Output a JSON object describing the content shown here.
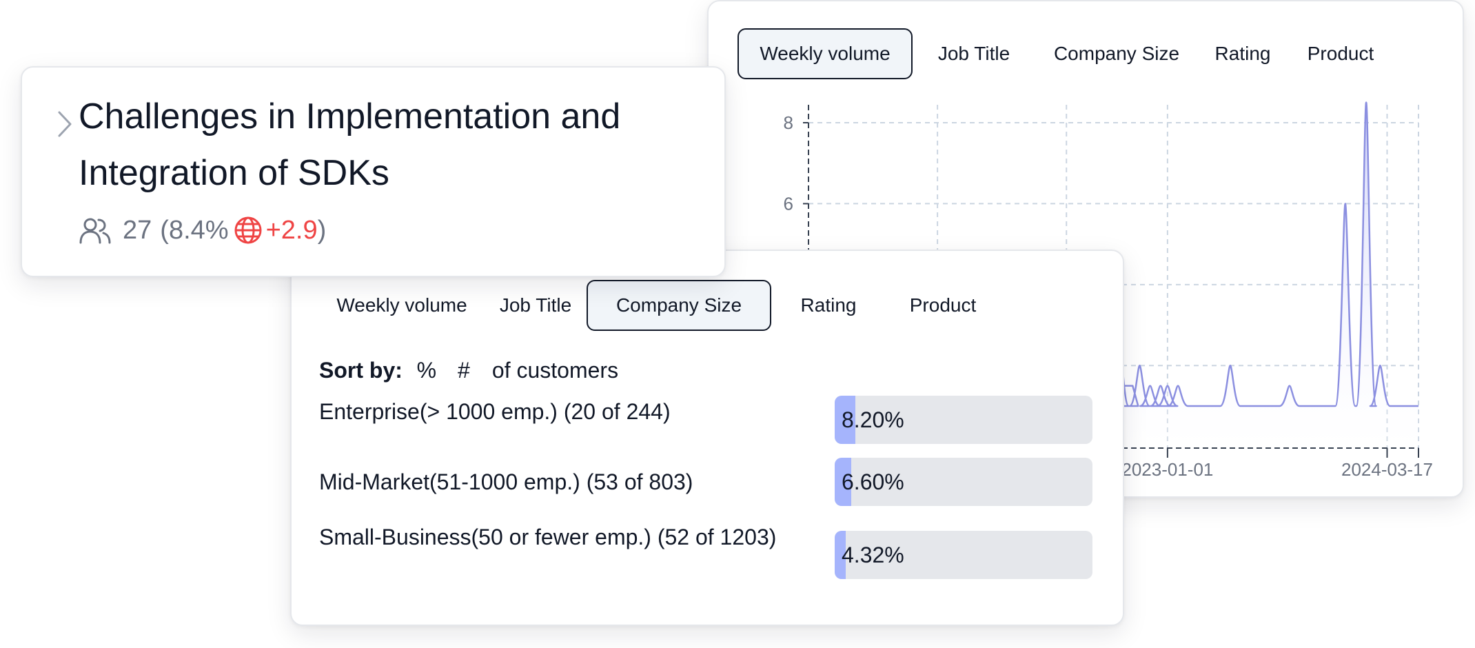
{
  "topic": {
    "title": "Challenges in Implementation and Integration of SDKs",
    "count": "27",
    "percent": "8.4%",
    "delta": "+2.9",
    "paren_open": "(",
    "paren_close": ")",
    "icons": [
      "chevron-right-icon",
      "people-icon",
      "globe-icon"
    ]
  },
  "chart_tabs": [
    {
      "label": "Weekly volume",
      "active": true
    },
    {
      "label": "Job Title",
      "active": false
    },
    {
      "label": "Company Size",
      "active": false
    },
    {
      "label": "Rating",
      "active": false
    },
    {
      "label": "Product",
      "active": false
    }
  ],
  "breakdown_tabs": [
    {
      "label": "Weekly volume",
      "active": false
    },
    {
      "label": "Job Title",
      "active": false
    },
    {
      "label": "Company Size",
      "active": true
    },
    {
      "label": "Rating",
      "active": false
    },
    {
      "label": "Product",
      "active": false
    }
  ],
  "sort": {
    "label": "Sort by:",
    "options": [
      {
        "label": "%",
        "active": true
      },
      {
        "label": "#",
        "active": false
      }
    ],
    "suffix": "of customers"
  },
  "segments": [
    {
      "label": "Enterprise(> 1000 emp.) (20 of 244)",
      "value": "8.20%",
      "fraction": 0.082
    },
    {
      "label": "Mid-Market(51-1000 emp.) (53 of 803)",
      "value": "6.60%",
      "fraction": 0.066
    },
    {
      "label": "Small-Business(50 or fewer emp.) (52 of 1203)",
      "value": "4.32%",
      "fraction": 0.0432
    }
  ],
  "colors": {
    "accent": "#a5b4fc",
    "line": "#8b8fe0",
    "negative": "#ef4444",
    "muted": "#6b7280"
  },
  "chart_data": {
    "type": "area",
    "y_ticks": [
      "8",
      "6"
    ],
    "x_ticks": [
      "2023-01-01",
      "2024-03-17"
    ],
    "ylim": [
      0,
      8
    ],
    "grid": true,
    "baseline": 1,
    "peaks": [
      {
        "x": "2022-09-25",
        "y": 3
      },
      {
        "x": "2022-11-06",
        "y": 2
      },
      {
        "x": "2022-11-27",
        "y": 1.5
      },
      {
        "x": "2022-12-18",
        "y": 1.5
      },
      {
        "x": "2023-01-01",
        "y": 1.5
      },
      {
        "x": "2023-01-22",
        "y": 1.5
      },
      {
        "x": "2023-05-07",
        "y": 2
      },
      {
        "x": "2023-09-03",
        "y": 1.5
      },
      {
        "x": "2023-12-24",
        "y": 6
      },
      {
        "x": "2024-02-04",
        "y": 8.5
      },
      {
        "x": "2024-03-03",
        "y": 2
      }
    ],
    "plateaus": [
      {
        "from": "2022-10-02",
        "to": "2022-10-23",
        "y": 1.5
      }
    ]
  }
}
